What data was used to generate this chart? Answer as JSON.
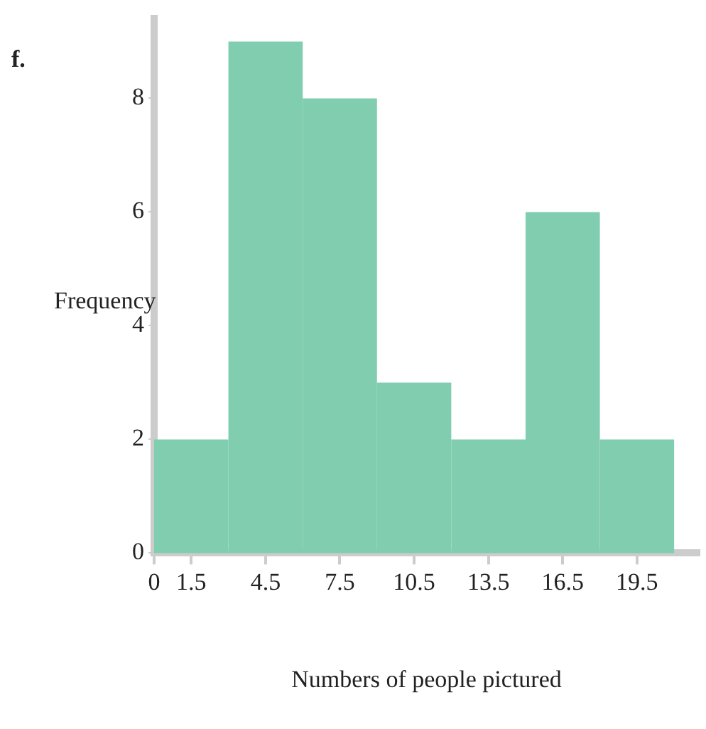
{
  "chart_data": {
    "type": "histogram",
    "bins": [
      0,
      3,
      6,
      9,
      12,
      15,
      18,
      21
    ],
    "values": [
      2,
      9,
      8,
      3,
      2,
      6,
      2
    ],
    "color": "#80cdb0",
    "xlabel": "Numbers of people pictured",
    "ylabel": "Frequency",
    "annotations": [
      "f."
    ],
    "xlim": [
      0,
      22
    ],
    "xticks": [
      0,
      1.5,
      4.5,
      7.5,
      10.5,
      13.5,
      16.5,
      19.5
    ],
    "ylim": [
      0,
      9.4
    ],
    "yticks": [
      0,
      2,
      4,
      6,
      8
    ],
    "grid": false,
    "legend": false
  }
}
